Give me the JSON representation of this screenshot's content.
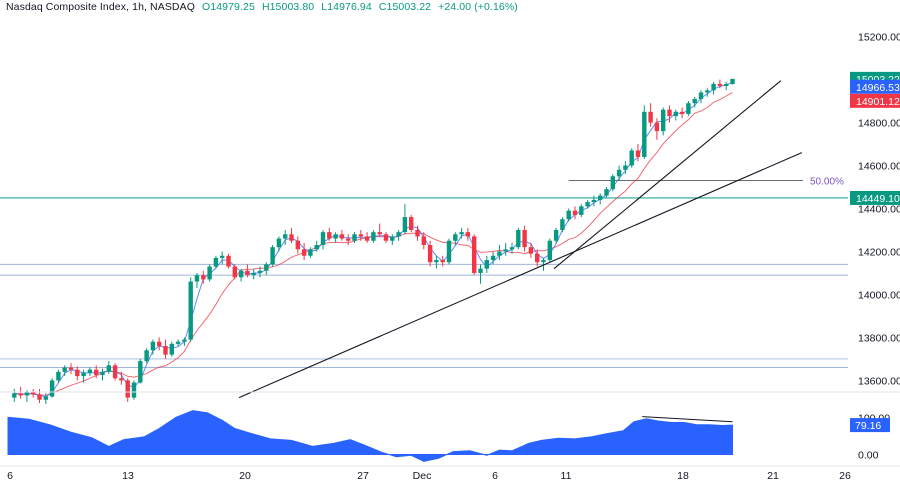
{
  "header": {
    "title": "Nasdaq Composite Index, 1h, NASDAQ",
    "open": "O14979.25",
    "high": "H15003.80",
    "low": "L14976.94",
    "close": "C15003.22",
    "change": "+24.00 (+0.16%)"
  },
  "chart_data": {
    "type": "candlestick",
    "instrument": "Nasdaq Composite Index",
    "timeframe": "1h",
    "exchange": "NASDAQ",
    "x_ticks": [
      "6",
      "13",
      "20",
      "27",
      "Dec",
      "6",
      "11",
      "18",
      "21",
      "26"
    ],
    "y_ticks": [
      "15200.00",
      "14800.00",
      "14600.00",
      "14400.00",
      "14200.00",
      "14000.00",
      "13800.00",
      "13600.00"
    ],
    "ylim": [
      13560,
      15240
    ],
    "price_labels": [
      {
        "text": "15003.22",
        "value": 15003.22,
        "color": "#089981"
      },
      {
        "text": "14966.53",
        "value": 14966.53,
        "color": "#2962ff"
      },
      {
        "text": "14901.12",
        "value": 14901.12,
        "color": "#f23645"
      },
      {
        "text": "14449.10",
        "value": 14449.1,
        "color": "#089981"
      }
    ],
    "horizontal_levels": [
      14449.1,
      14140,
      14090,
      13700,
      13660
    ],
    "fib_label": "50.00%",
    "fib_level": 14530,
    "trendlines": [
      {
        "from": [
          11.0,
          13520
        ],
        "to": [
          37.8,
          14660
        ]
      },
      {
        "from": [
          26.0,
          14120
        ],
        "to": [
          36.8,
          14995
        ]
      }
    ],
    "moving_averages": [
      {
        "name": "fast",
        "color": "#2962ff"
      },
      {
        "name": "slow",
        "color": "#f23645"
      }
    ],
    "candles": [
      [
        0.3,
        13520,
        13560,
        13500,
        13540
      ],
      [
        0.6,
        13540,
        13570,
        13515,
        13530
      ],
      [
        0.9,
        13530,
        13555,
        13500,
        13545
      ],
      [
        1.2,
        13545,
        13560,
        13520,
        13535
      ],
      [
        1.5,
        13535,
        13560,
        13495,
        13510
      ],
      [
        1.8,
        13510,
        13540,
        13490,
        13525
      ],
      [
        2.1,
        13525,
        13610,
        13520,
        13600
      ],
      [
        2.4,
        13600,
        13650,
        13590,
        13640
      ],
      [
        2.7,
        13640,
        13670,
        13620,
        13660
      ],
      [
        3.0,
        13660,
        13680,
        13630,
        13650
      ],
      [
        3.3,
        13650,
        13665,
        13600,
        13620
      ],
      [
        3.6,
        13620,
        13650,
        13590,
        13635
      ],
      [
        3.9,
        13635,
        13660,
        13620,
        13650
      ],
      [
        4.2,
        13650,
        13670,
        13610,
        13625
      ],
      [
        4.5,
        13625,
        13655,
        13600,
        13640
      ],
      [
        4.8,
        13640,
        13690,
        13630,
        13670
      ],
      [
        5.1,
        13670,
        13680,
        13600,
        13610
      ],
      [
        5.4,
        13610,
        13640,
        13580,
        13600
      ],
      [
        5.7,
        13600,
        13610,
        13500,
        13520
      ],
      [
        6.0,
        13520,
        13600,
        13510,
        13590
      ],
      [
        6.3,
        13590,
        13700,
        13585,
        13690
      ],
      [
        6.6,
        13690,
        13750,
        13680,
        13740
      ],
      [
        6.9,
        13740,
        13790,
        13720,
        13780
      ],
      [
        7.2,
        13780,
        13800,
        13740,
        13760
      ],
      [
        7.5,
        13760,
        13790,
        13700,
        13720
      ],
      [
        7.8,
        13720,
        13780,
        13710,
        13770
      ],
      [
        8.1,
        13770,
        13790,
        13760,
        13780
      ],
      [
        8.4,
        13780,
        13800,
        13760,
        13790
      ],
      [
        8.7,
        13790,
        14080,
        13780,
        14060
      ],
      [
        9.0,
        14060,
        14100,
        14030,
        14090
      ],
      [
        9.3,
        14090,
        14110,
        14050,
        14070
      ],
      [
        9.6,
        14070,
        14140,
        14060,
        14130
      ],
      [
        9.9,
        14130,
        14180,
        14120,
        14170
      ],
      [
        10.2,
        14170,
        14200,
        14140,
        14180
      ],
      [
        10.5,
        14180,
        14190,
        14120,
        14130
      ],
      [
        10.8,
        14130,
        14140,
        14070,
        14080
      ],
      [
        11.1,
        14080,
        14120,
        14060,
        14110
      ],
      [
        11.4,
        14110,
        14140,
        14080,
        14090
      ],
      [
        11.7,
        14090,
        14120,
        14070,
        14100
      ],
      [
        12.0,
        14100,
        14130,
        14080,
        14110
      ],
      [
        12.3,
        14110,
        14150,
        14090,
        14140
      ],
      [
        12.6,
        14140,
        14230,
        14130,
        14220
      ],
      [
        12.9,
        14220,
        14270,
        14200,
        14260
      ],
      [
        13.2,
        14260,
        14300,
        14230,
        14280
      ],
      [
        13.5,
        14280,
        14310,
        14240,
        14250
      ],
      [
        13.8,
        14250,
        14270,
        14190,
        14210
      ],
      [
        14.1,
        14210,
        14240,
        14160,
        14180
      ],
      [
        14.4,
        14180,
        14220,
        14170,
        14210
      ],
      [
        14.7,
        14210,
        14250,
        14200,
        14230
      ],
      [
        15.0,
        14230,
        14300,
        14210,
        14290
      ],
      [
        15.3,
        14290,
        14310,
        14250,
        14260
      ],
      [
        15.6,
        14260,
        14290,
        14240,
        14280
      ],
      [
        15.9,
        14280,
        14300,
        14250,
        14260
      ],
      [
        16.2,
        14260,
        14280,
        14230,
        14250
      ],
      [
        16.5,
        14250,
        14290,
        14240,
        14280
      ],
      [
        16.8,
        14280,
        14300,
        14250,
        14270
      ],
      [
        17.1,
        14270,
        14290,
        14240,
        14250
      ],
      [
        17.4,
        14250,
        14300,
        14240,
        14290
      ],
      [
        17.7,
        14290,
        14330,
        14270,
        14280
      ],
      [
        18.0,
        14280,
        14290,
        14240,
        14250
      ],
      [
        18.3,
        14250,
        14280,
        14230,
        14270
      ],
      [
        18.6,
        14270,
        14300,
        14250,
        14290
      ],
      [
        18.9,
        14290,
        14420,
        14280,
        14360
      ],
      [
        19.2,
        14360,
        14370,
        14290,
        14300
      ],
      [
        19.5,
        14300,
        14320,
        14250,
        14270
      ],
      [
        19.8,
        14270,
        14290,
        14210,
        14230
      ],
      [
        20.1,
        14230,
        14250,
        14130,
        14150
      ],
      [
        20.4,
        14150,
        14180,
        14120,
        14160
      ],
      [
        20.7,
        14160,
        14180,
        14130,
        14150
      ],
      [
        21.0,
        14150,
        14260,
        14140,
        14250
      ],
      [
        21.3,
        14250,
        14290,
        14230,
        14280
      ],
      [
        21.6,
        14280,
        14310,
        14260,
        14290
      ],
      [
        21.9,
        14290,
        14310,
        14250,
        14270
      ],
      [
        22.2,
        14270,
        14280,
        14090,
        14100
      ],
      [
        22.5,
        14100,
        14140,
        14050,
        14120
      ],
      [
        22.8,
        14120,
        14180,
        14100,
        14160
      ],
      [
        23.1,
        14160,
        14200,
        14140,
        14180
      ],
      [
        23.4,
        14180,
        14230,
        14160,
        14200
      ],
      [
        23.7,
        14200,
        14240,
        14180,
        14210
      ],
      [
        24.0,
        14210,
        14240,
        14190,
        14220
      ],
      [
        24.3,
        14220,
        14310,
        14210,
        14300
      ],
      [
        24.6,
        14300,
        14320,
        14200,
        14220
      ],
      [
        24.9,
        14220,
        14240,
        14170,
        14190
      ],
      [
        25.2,
        14190,
        14210,
        14130,
        14150
      ],
      [
        25.5,
        14150,
        14170,
        14110,
        14160
      ],
      [
        25.8,
        14160,
        14260,
        14150,
        14250
      ],
      [
        26.1,
        14250,
        14310,
        14240,
        14300
      ],
      [
        26.4,
        14300,
        14360,
        14290,
        14350
      ],
      [
        26.7,
        14350,
        14400,
        14340,
        14390
      ],
      [
        27.0,
        14390,
        14410,
        14350,
        14370
      ],
      [
        27.3,
        14370,
        14420,
        14360,
        14410
      ],
      [
        27.6,
        14410,
        14440,
        14400,
        14430
      ],
      [
        27.9,
        14430,
        14460,
        14410,
        14440
      ],
      [
        28.2,
        14440,
        14470,
        14420,
        14460
      ],
      [
        28.5,
        14460,
        14500,
        14450,
        14490
      ],
      [
        28.8,
        14490,
        14560,
        14480,
        14550
      ],
      [
        29.1,
        14550,
        14600,
        14530,
        14580
      ],
      [
        29.4,
        14580,
        14620,
        14560,
        14600
      ],
      [
        29.7,
        14600,
        14680,
        14590,
        14670
      ],
      [
        30.0,
        14670,
        14700,
        14620,
        14640
      ],
      [
        30.3,
        14640,
        14880,
        14630,
        14850
      ],
      [
        30.6,
        14850,
        14890,
        14780,
        14800
      ],
      [
        30.9,
        14800,
        14820,
        14720,
        14760
      ],
      [
        31.2,
        14760,
        14870,
        14740,
        14860
      ],
      [
        31.5,
        14860,
        14880,
        14800,
        14830
      ],
      [
        31.8,
        14830,
        14860,
        14810,
        14850
      ],
      [
        32.1,
        14850,
        14870,
        14820,
        14840
      ],
      [
        32.4,
        14840,
        14900,
        14830,
        14890
      ],
      [
        32.7,
        14890,
        14920,
        14870,
        14910
      ],
      [
        33.0,
        14910,
        14950,
        14890,
        14940
      ],
      [
        33.3,
        14940,
        14960,
        14920,
        14950
      ],
      [
        33.6,
        14950,
        14990,
        14930,
        14980
      ],
      [
        33.9,
        14980,
        15000,
        14960,
        14970
      ],
      [
        34.2,
        14970,
        14990,
        14950,
        14980
      ],
      [
        34.5,
        14979.25,
        15003.8,
        14976.94,
        15003.22
      ]
    ],
    "oscillator": {
      "ticks": [
        "100.00",
        "0.00"
      ],
      "value_label": "79.16",
      "ylim": [
        -20,
        160
      ],
      "values": [
        [
          0,
          100
        ],
        [
          1,
          95
        ],
        [
          2,
          80
        ],
        [
          3,
          60
        ],
        [
          4,
          45
        ],
        [
          4.8,
          22
        ],
        [
          5.5,
          40
        ],
        [
          6.5,
          48
        ],
        [
          7.2,
          70
        ],
        [
          8,
          100
        ],
        [
          8.8,
          118
        ],
        [
          9.5,
          112
        ],
        [
          10.2,
          92
        ],
        [
          10.8,
          70
        ],
        [
          11.5,
          58
        ],
        [
          12.5,
          42
        ],
        [
          13.5,
          38
        ],
        [
          14.5,
          22
        ],
        [
          15.5,
          30
        ],
        [
          16.3,
          40
        ],
        [
          17,
          25
        ],
        [
          17.8,
          6
        ],
        [
          18.5,
          -6
        ],
        [
          19.2,
          -2
        ],
        [
          19.8,
          -18
        ],
        [
          20.5,
          -10
        ],
        [
          21.2,
          8
        ],
        [
          22,
          10
        ],
        [
          22.8,
          -2
        ],
        [
          23.4,
          12
        ],
        [
          24,
          10
        ],
        [
          24.8,
          30
        ],
        [
          25.4,
          38
        ],
        [
          26.2,
          44
        ],
        [
          27,
          42
        ],
        [
          27.8,
          48
        ],
        [
          28.5,
          56
        ],
        [
          29.3,
          64
        ],
        [
          29.8,
          88
        ],
        [
          30.4,
          96
        ],
        [
          31.0,
          90
        ],
        [
          31.6,
          86
        ],
        [
          32.2,
          86
        ],
        [
          32.8,
          80
        ],
        [
          33.4,
          80
        ],
        [
          34.0,
          78
        ],
        [
          34.5,
          79.16
        ]
      ]
    },
    "oscillator_trendline": {
      "from": [
        30.2,
        102
      ],
      "to": [
        34.5,
        88
      ]
    }
  }
}
